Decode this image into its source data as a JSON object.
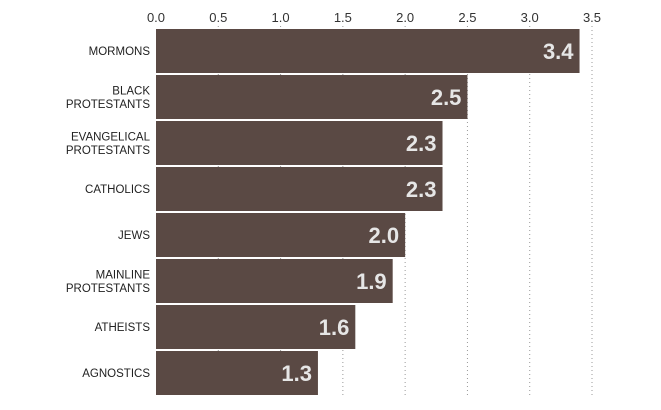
{
  "chart_data": {
    "type": "bar",
    "orientation": "horizontal",
    "categories": [
      [
        "MORMONS"
      ],
      [
        "BLACK",
        "PROTESTANTS"
      ],
      [
        "EVANGELICAL",
        "PROTESTANTS"
      ],
      [
        "CATHOLICS"
      ],
      [
        "JEWS"
      ],
      [
        "MAINLINE",
        "PROTESTANTS"
      ],
      [
        "ATHEISTS"
      ],
      [
        "AGNOSTICS"
      ]
    ],
    "values": [
      3.4,
      2.5,
      2.3,
      2.3,
      2.0,
      1.9,
      1.6,
      1.3
    ],
    "value_labels": [
      "3.4",
      "2.5",
      "2.3",
      "2.3",
      "2.0",
      "1.9",
      "1.6",
      "1.3"
    ],
    "xlim": [
      0,
      3.5
    ],
    "ticks": [
      "0.0",
      "0.5",
      "1.0",
      "1.5",
      "2.0",
      "2.5",
      "3.0",
      "3.5"
    ],
    "tick_values": [
      0,
      0.5,
      1.0,
      1.5,
      2.0,
      2.5,
      3.0,
      3.5
    ],
    "title": "",
    "xlabel": "",
    "ylabel": "",
    "grid": true,
    "legend": "none",
    "colors": {
      "bar": "#5a4944",
      "value_text": "#e6e6e6",
      "grid": "#999999",
      "text": "#222222"
    }
  }
}
